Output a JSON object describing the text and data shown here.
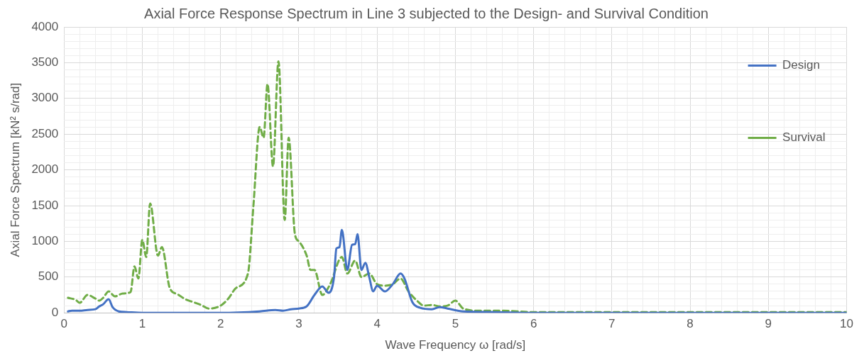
{
  "chart_data": {
    "type": "line",
    "title": "Axial Force Response Spectrum in Line 3 subjected to the Design- and Survival Condition",
    "xlabel": "Wave Frequency ω [rad/s]",
    "ylabel": "Axial Force Spectrum [kN² s/rad]",
    "xlim": [
      0,
      10
    ],
    "xticks": [
      0,
      1,
      2,
      3,
      4,
      5,
      6,
      7,
      8,
      9,
      10
    ],
    "ylim": [
      0,
      4000
    ],
    "yticks": [
      0,
      500,
      1000,
      1500,
      2000,
      2500,
      3000,
      3500,
      4000
    ],
    "grid": true,
    "legend": "top right",
    "marker": "none",
    "series": [
      {
        "name": "Design",
        "color": "#4472c4",
        "line_style": "solid",
        "x": [
          0.05,
          0.1,
          0.2,
          0.3,
          0.4,
          0.45,
          0.5,
          0.57,
          0.62,
          0.7,
          0.8,
          1,
          2,
          2.5,
          2.7,
          2.8,
          2.9,
          3.0,
          3.1,
          3.2,
          3.3,
          3.38,
          3.45,
          3.48,
          3.52,
          3.55,
          3.62,
          3.68,
          3.72,
          3.75,
          3.8,
          3.85,
          3.9,
          3.95,
          4.0,
          4.1,
          4.2,
          4.3,
          4.35,
          4.45,
          4.55,
          4.7,
          4.8,
          4.9,
          5.1,
          5.5,
          6,
          10
        ],
        "values": [
          20,
          30,
          30,
          40,
          50,
          90,
          120,
          190,
          80,
          20,
          10,
          0,
          0,
          20,
          40,
          30,
          50,
          60,
          90,
          250,
          370,
          280,
          500,
          900,
          920,
          1160,
          600,
          950,
          960,
          1100,
          600,
          700,
          500,
          300,
          380,
          300,
          400,
          550,
          480,
          150,
          70,
          50,
          80,
          60,
          20,
          10,
          0,
          0
        ]
      },
      {
        "name": "Survival",
        "color": "#70ad47",
        "line_style": "dashed",
        "x": [
          0.05,
          0.15,
          0.2,
          0.3,
          0.4,
          0.45,
          0.5,
          0.57,
          0.65,
          0.75,
          0.85,
          0.9,
          0.95,
          1.0,
          1.05,
          1.1,
          1.2,
          1.25,
          1.35,
          1.45,
          1.55,
          1.65,
          1.75,
          1.85,
          2.0,
          2.1,
          2.2,
          2.35,
          2.42,
          2.5,
          2.55,
          2.6,
          2.67,
          2.74,
          2.82,
          2.87,
          2.95,
          3.0,
          3.1,
          3.15,
          3.2,
          3.3,
          3.4,
          3.55,
          3.62,
          3.72,
          3.8,
          3.9,
          4.0,
          4.1,
          4.2,
          4.3,
          4.4,
          4.5,
          4.6,
          4.7,
          4.8,
          4.9,
          5.0,
          5.1,
          5.3,
          5.6,
          6,
          7,
          10
        ],
        "values": [
          210,
          180,
          140,
          250,
          200,
          170,
          210,
          300,
          230,
          270,
          290,
          650,
          480,
          1020,
          780,
          1530,
          800,
          920,
          350,
          260,
          190,
          150,
          110,
          60,
          100,
          200,
          350,
          550,
          1500,
          2600,
          2450,
          3200,
          2050,
          3520,
          1300,
          2450,
          1100,
          1000,
          800,
          600,
          600,
          250,
          400,
          780,
          550,
          730,
          500,
          550,
          400,
          380,
          400,
          480,
          300,
          180,
          100,
          110,
          90,
          100,
          170,
          60,
          30,
          30,
          10,
          10,
          10
        ]
      }
    ]
  }
}
